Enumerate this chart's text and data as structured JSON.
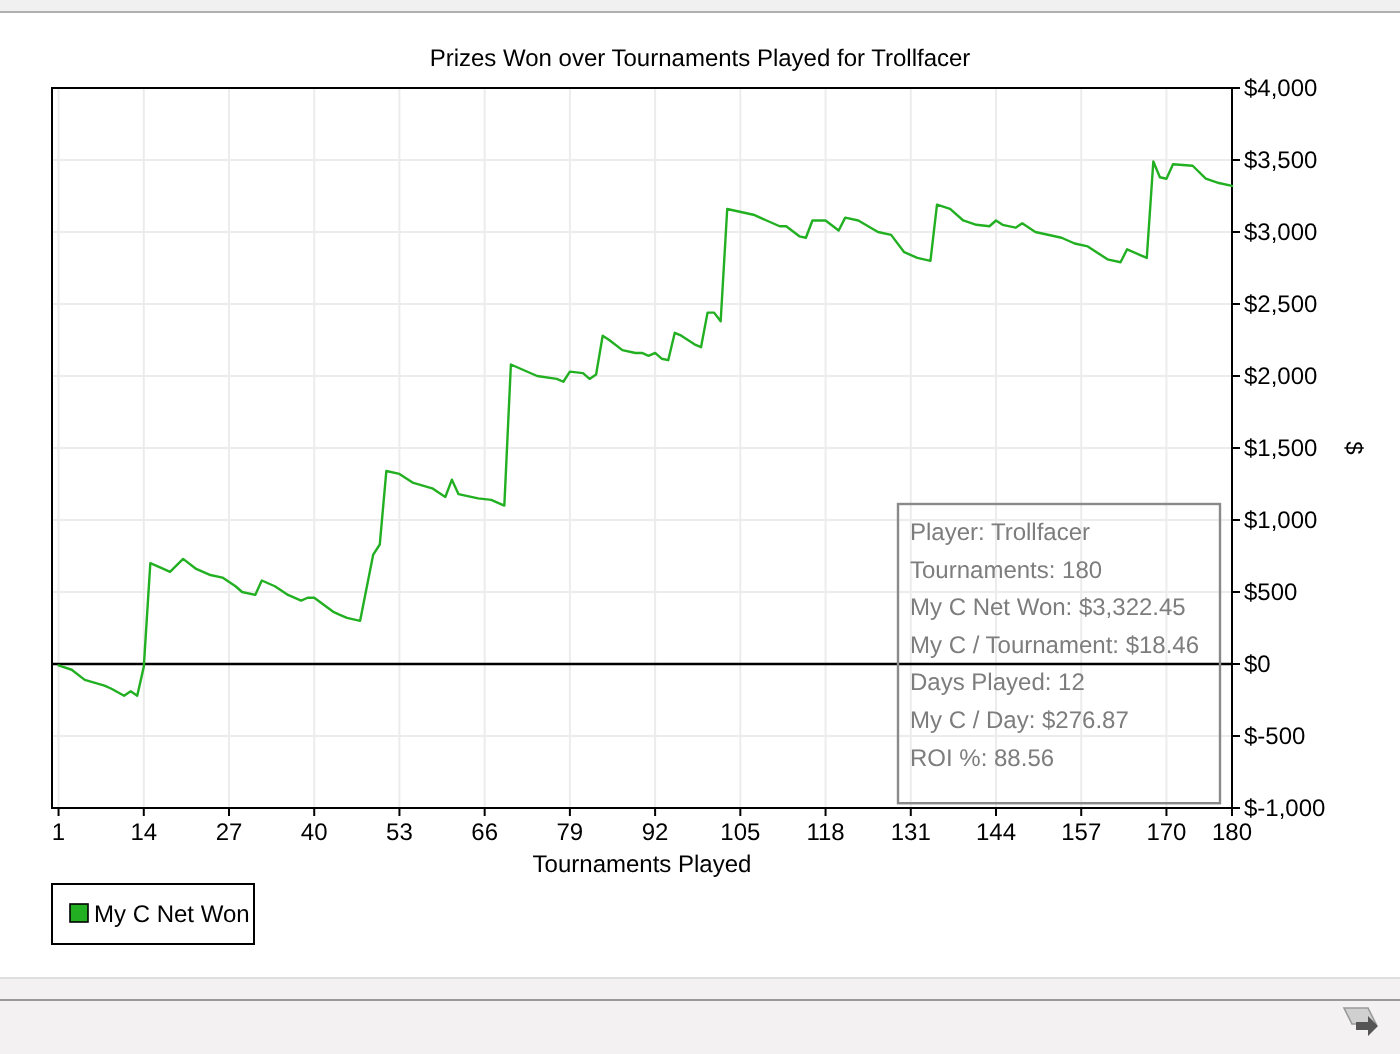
{
  "chart_data": {
    "type": "line",
    "title": "Prizes Won over Tournaments Played for Trollfacer",
    "xlabel": "Tournaments Played",
    "ylabel": "$",
    "annotations": [
      "Player: Trollfacer",
      "Tournaments: 180",
      "My C Net Won: $3,322.45",
      "My C / Tournament: $18.46",
      "Days Played: 12",
      "My C / Day: $276.87",
      "ROI %: 88.56"
    ],
    "x": [
      1,
      3,
      5,
      8,
      9,
      11,
      12,
      13,
      14,
      15,
      17,
      18,
      20,
      22,
      24,
      26,
      28,
      29,
      31,
      32,
      34,
      36,
      38,
      39,
      40,
      43,
      44,
      45,
      47,
      49,
      50,
      51,
      53,
      55,
      58,
      60,
      61,
      62,
      65,
      67,
      69,
      70,
      74,
      77,
      78,
      79,
      81,
      82,
      83,
      84,
      85,
      87,
      89,
      90,
      91,
      92,
      93,
      94,
      95,
      96,
      98,
      99,
      100,
      101,
      102,
      103,
      107,
      109,
      111,
      112,
      114,
      115,
      116,
      118,
      120,
      121,
      123,
      126,
      128,
      130,
      132,
      134,
      135,
      137,
      139,
      141,
      143,
      144,
      145,
      147,
      148,
      150,
      154,
      156,
      158,
      160,
      161,
      163,
      164,
      166,
      167,
      168,
      169,
      170,
      171,
      174,
      176,
      178,
      180
    ],
    "series": [
      {
        "name": "My C Net Won",
        "color": "#22b022",
        "values": [
          -10,
          -40,
          -110,
          -150,
          -170,
          -220,
          -190,
          -220,
          -20,
          700,
          660,
          640,
          730,
          660,
          620,
          600,
          540,
          500,
          480,
          580,
          540,
          480,
          440,
          460,
          460,
          360,
          340,
          320,
          300,
          760,
          830,
          1340,
          1320,
          1260,
          1220,
          1160,
          1280,
          1180,
          1150,
          1140,
          1100,
          2080,
          2000,
          1980,
          1960,
          2030,
          2020,
          1980,
          2010,
          2280,
          2250,
          2180,
          2160,
          2160,
          2140,
          2160,
          2120,
          2110,
          2300,
          2280,
          2220,
          2200,
          2440,
          2440,
          2380,
          3160,
          3120,
          3080,
          3040,
          3040,
          2970,
          2960,
          3080,
          3080,
          3010,
          3100,
          3080,
          3000,
          2980,
          2860,
          2820,
          2800,
          3190,
          3160,
          3080,
          3050,
          3040,
          3080,
          3050,
          3030,
          3060,
          3000,
          2960,
          2920,
          2900,
          2840,
          2810,
          2790,
          2880,
          2840,
          2820,
          3490,
          3380,
          3370,
          3470,
          3460,
          3370,
          3340,
          3320
        ]
      }
    ],
    "xlim": [
      0,
      180
    ],
    "xticks": [
      1,
      14,
      27,
      40,
      53,
      66,
      79,
      92,
      105,
      118,
      131,
      144,
      157,
      170,
      180
    ],
    "ylim": [
      -1000,
      4000
    ],
    "yticks": [
      {
        "value": -1000,
        "label": "$-1,000"
      },
      {
        "value": -500,
        "label": "$-500"
      },
      {
        "value": 0,
        "label": "$0"
      },
      {
        "value": 500,
        "label": "$500"
      },
      {
        "value": 1000,
        "label": "$1,000"
      },
      {
        "value": 1500,
        "label": "$1,500"
      },
      {
        "value": 2000,
        "label": "$2,000"
      },
      {
        "value": 2500,
        "label": "$2,500"
      },
      {
        "value": 3000,
        "label": "$3,000"
      },
      {
        "value": 3500,
        "label": "$3,500"
      },
      {
        "value": 4000,
        "label": "$4,000"
      }
    ],
    "ref_lines": [
      {
        "axis": "y",
        "value": 0,
        "color": "#000000"
      }
    ],
    "grid": true,
    "legend": "bottom left"
  }
}
